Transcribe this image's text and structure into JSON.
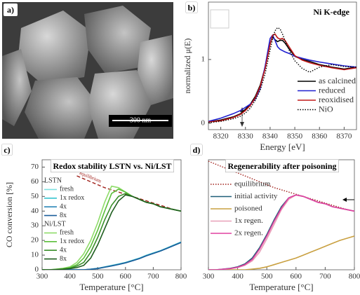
{
  "image_panel": {
    "panel_label": "a)",
    "scale_bar": "300 nm"
  },
  "chart_data": [
    {
      "type": "line",
      "panel_label": "b)",
      "title": "Ni K-edge",
      "xlabel": "Energy [eV]",
      "ylabel": "normalized μ(E)",
      "x": [
        8315,
        8320,
        8325,
        8328,
        8330,
        8332,
        8334,
        8336,
        8338,
        8340,
        8341,
        8342,
        8343,
        8344,
        8345,
        8346,
        8348,
        8350,
        8353,
        8356,
        8360,
        8365,
        8370,
        8375
      ],
      "xlim": [
        8315,
        8375
      ],
      "xticks": [
        8320,
        8330,
        8340,
        8350,
        8360,
        8370
      ],
      "ylim": [
        -0.1,
        1.9
      ],
      "yticks": [
        0,
        1
      ],
      "legend": "lower right",
      "series": [
        {
          "name": "as calcined",
          "color": "#000000",
          "values": [
            0.02,
            0.05,
            0.1,
            0.15,
            0.22,
            0.3,
            0.42,
            0.6,
            0.88,
            1.25,
            1.35,
            1.31,
            1.28,
            1.3,
            1.3,
            1.26,
            1.15,
            1.05,
            1.0,
            0.97,
            0.92,
            0.88,
            0.85,
            0.88
          ]
        },
        {
          "name": "reduced",
          "color": "#2020d0",
          "values": [
            0.03,
            0.08,
            0.15,
            0.2,
            0.25,
            0.3,
            0.38,
            0.55,
            0.9,
            1.33,
            1.38,
            1.3,
            1.2,
            1.16,
            1.14,
            1.12,
            1.09,
            1.05,
            1.02,
            0.99,
            0.96,
            0.93,
            0.9,
            0.88
          ]
        },
        {
          "name": "reoxidised",
          "color": "#c01818",
          "values": [
            0.02,
            0.04,
            0.09,
            0.14,
            0.2,
            0.28,
            0.4,
            0.58,
            0.86,
            1.24,
            1.38,
            1.4,
            1.34,
            1.32,
            1.33,
            1.3,
            1.18,
            1.06,
            0.99,
            0.95,
            0.91,
            0.87,
            0.84,
            0.87
          ]
        },
        {
          "name": "NiO",
          "color": "#000000",
          "dash": "dotted",
          "values": [
            0.01,
            0.03,
            0.07,
            0.11,
            0.16,
            0.24,
            0.36,
            0.52,
            0.78,
            1.15,
            1.32,
            1.45,
            1.5,
            1.48,
            1.4,
            1.3,
            1.12,
            0.98,
            0.86,
            0.8,
            0.88,
            0.92,
            0.89,
            0.88
          ]
        }
      ]
    },
    {
      "type": "line",
      "panel_label": "c)",
      "title": "Redox stability LSTN vs. Ni/LST",
      "xlabel": "Temperature [°C]",
      "ylabel": "CO conversion [%]",
      "x": [
        300,
        325,
        350,
        375,
        400,
        425,
        450,
        475,
        500,
        525,
        550,
        575,
        600,
        625,
        650,
        675,
        700,
        725,
        750,
        775,
        800
      ],
      "xlim": [
        300,
        800
      ],
      "xticks": [
        300,
        400,
        500,
        600,
        700,
        800
      ],
      "ylim": [
        0,
        75
      ],
      "yticks": [
        0,
        10,
        20,
        30,
        40,
        50,
        60,
        70
      ],
      "legend": "upper left",
      "equilibrium": {
        "name": "equilibrium",
        "color": "#a0201a",
        "dash": "dashed",
        "values": [
          null,
          null,
          null,
          null,
          null,
          64,
          62,
          60,
          58,
          56,
          54.5,
          53,
          51.5,
          50,
          48.5,
          47,
          45.5,
          44,
          42.5,
          41,
          40
        ]
      },
      "series_groups": [
        {
          "name": "LSTN",
          "series": [
            {
              "name": "fresh",
              "color": "#80e0e0",
              "values": [
                0,
                0,
                0,
                0,
                0,
                0,
                0,
                0.5,
                1,
                2,
                3,
                4,
                5,
                6.5,
                8,
                10,
                11.5,
                13,
                15,
                17,
                19
              ]
            },
            {
              "name": "1x redox",
              "color": "#35c4cf",
              "values": [
                0,
                0,
                0,
                0,
                0,
                0,
                0,
                0.4,
                0.9,
                1.8,
                2.8,
                3.8,
                4.9,
                6.3,
                7.8,
                9.7,
                11.3,
                12.9,
                14.8,
                16.8,
                18.8
              ]
            },
            {
              "name": "4x",
              "color": "#2a86b8",
              "values": [
                0,
                0,
                0,
                0,
                0,
                0,
                0,
                0.4,
                0.9,
                1.8,
                2.7,
                3.7,
                4.8,
                6.2,
                7.7,
                9.6,
                11.2,
                12.8,
                14.7,
                16.7,
                18.7
              ]
            },
            {
              "name": "8x",
              "color": "#1b5e9a",
              "values": [
                0,
                0,
                0,
                0,
                0,
                0,
                0,
                0.3,
                0.8,
                1.7,
                2.6,
                3.6,
                4.7,
                6.1,
                7.6,
                9.5,
                11.1,
                12.7,
                14.6,
                16.6,
                18.6
              ]
            }
          ]
        },
        {
          "name": "Ni/LST",
          "series": [
            {
              "name": "fresh",
              "color": "#8fdc6a",
              "values": [
                0,
                0,
                0.5,
                1,
                2,
                5,
                11,
                20,
                32,
                46,
                57,
                56,
                53,
                50,
                48,
                46,
                45,
                43,
                42,
                41,
                40
              ]
            },
            {
              "name": "1x redox",
              "color": "#5cbf3a",
              "values": [
                0,
                0,
                0.3,
                0.8,
                1.5,
                3.5,
                8,
                16,
                27,
                40,
                52,
                55,
                53,
                50,
                48,
                46,
                45,
                43,
                42,
                41,
                40
              ]
            },
            {
              "name": "4x",
              "color": "#3a8f2a",
              "values": [
                0,
                0,
                0.2,
                0.5,
                1,
                2.5,
                5,
                12,
                22,
                34,
                44,
                50,
                52,
                50,
                48,
                46,
                45,
                43,
                42,
                41,
                40
              ]
            },
            {
              "name": "8x",
              "color": "#1f5e1f",
              "values": [
                0,
                0,
                0.1,
                0.3,
                0.7,
                1.5,
                3,
                8,
                17,
                28,
                39,
                47,
                51,
                50,
                48,
                46,
                45,
                43,
                42,
                41,
                40
              ]
            }
          ]
        }
      ]
    },
    {
      "type": "line",
      "panel_label": "d)",
      "title": "Regenerability after poisoning",
      "xlabel": "Temperature [°C]",
      "x": [
        300,
        325,
        350,
        375,
        400,
        425,
        450,
        475,
        500,
        525,
        550,
        575,
        600,
        625,
        650,
        675,
        700,
        725,
        750,
        775,
        800
      ],
      "xlim": [
        300,
        800
      ],
      "xticks": [
        300,
        400,
        500,
        600,
        700,
        800
      ],
      "ylim": [
        0,
        75
      ],
      "legend": "upper left",
      "series": [
        {
          "name": "equilibrium",
          "color": "#a0201a",
          "dash": "dotted",
          "values": [
            74,
            72,
            70,
            68,
            66,
            64,
            62,
            60,
            58,
            56,
            54.5,
            53,
            51.5,
            50,
            48.5,
            47,
            45.5,
            44,
            42.5,
            41,
            40
          ]
        },
        {
          "name": "initial activity",
          "color": "#1f5f78",
          "values": [
            0,
            0,
            0.5,
            1,
            2,
            4,
            8,
            15,
            24,
            34,
            43,
            49,
            51,
            50,
            48,
            46,
            45,
            43,
            42,
            41,
            40
          ]
        },
        {
          "name": "poisoned",
          "color": "#c9a040",
          "values": [
            0,
            0,
            0,
            0,
            0,
            0,
            0.5,
            1,
            2,
            3.5,
            5,
            6.5,
            8,
            10,
            12,
            14,
            16,
            18,
            20,
            21.5,
            23
          ]
        },
        {
          "name": "1x regen.",
          "color": "#e8a0b8",
          "values": [
            0,
            0,
            0.3,
            0.7,
            1.5,
            3,
            6,
            12,
            21,
            31,
            41,
            48,
            51,
            50,
            48,
            46,
            45,
            43,
            42,
            41,
            40
          ]
        },
        {
          "name": "2x regen.",
          "color": "#e040a0",
          "values": [
            0,
            0,
            0.4,
            0.8,
            1.7,
            3.5,
            7,
            14,
            23,
            33,
            42,
            49,
            51,
            50,
            48,
            46,
            45,
            43,
            42,
            41,
            40
          ]
        }
      ]
    }
  ]
}
